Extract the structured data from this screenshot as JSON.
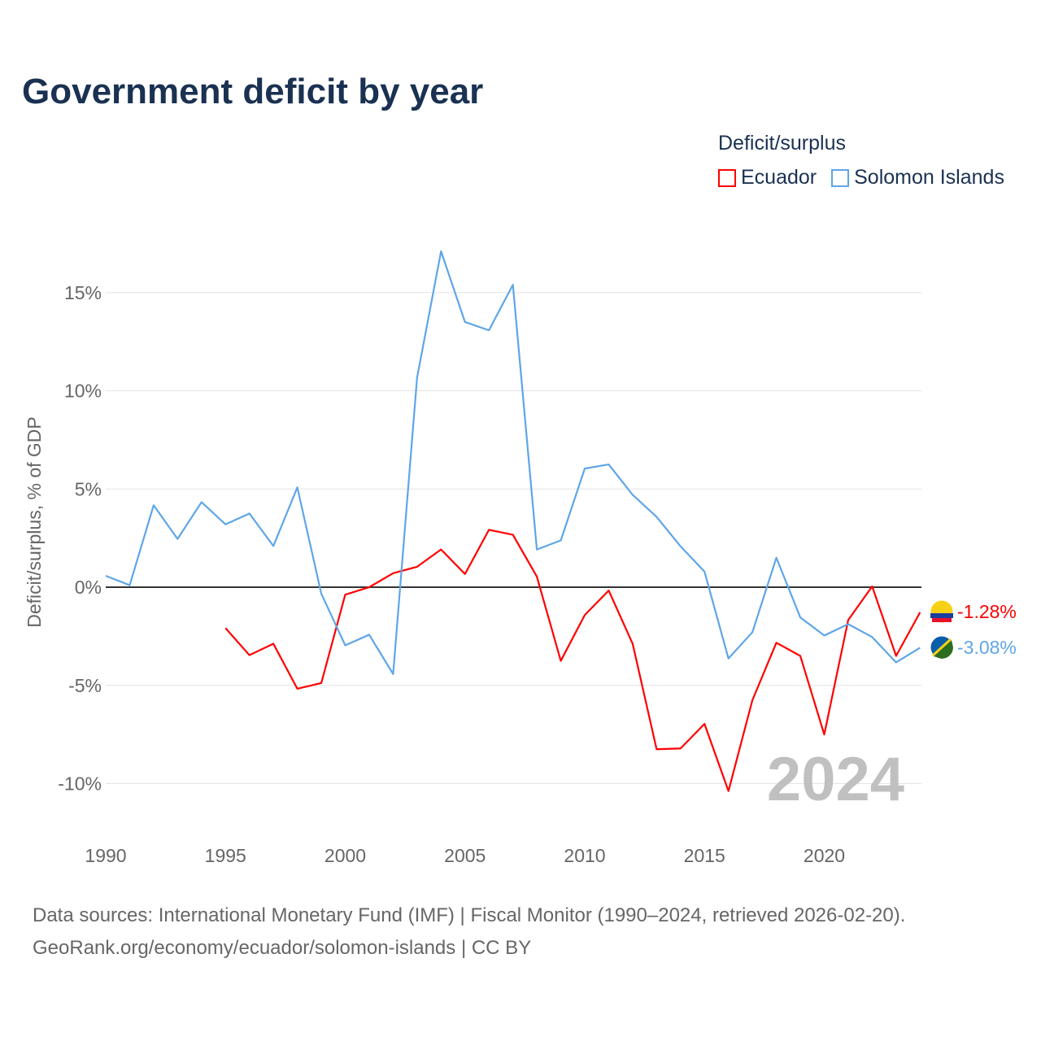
{
  "title": "Government deficit by year",
  "legend_title": "Deficit/surplus",
  "colors": {
    "Ecuador": "#ff0000",
    "Solomon Islands": "#5ea6e8"
  },
  "chart_data": {
    "type": "line",
    "title": "Government deficit by year",
    "xlabel": "",
    "ylabel": "Deficit/surplus, % of GDP",
    "xlim": [
      1990,
      2024
    ],
    "ylim": [
      -12,
      19
    ],
    "x_ticks": [
      1990,
      1995,
      2000,
      2005,
      2010,
      2015,
      2020
    ],
    "x_tick_labels": [
      "1990",
      "1995",
      "2000",
      "2005",
      "2010",
      "2015",
      "2020"
    ],
    "y_ticks": [
      -10,
      -5,
      0,
      5,
      10,
      15
    ],
    "y_tick_labels": [
      "-10%",
      "-5%",
      "0%",
      "5%",
      "10%",
      "15%"
    ],
    "grid": true,
    "legend_position": "top-right",
    "watermark_year": "2024",
    "series": [
      {
        "name": "Ecuador",
        "color": "#ff0000",
        "end_label": "-1.28%",
        "x": [
          1995,
          1996,
          1997,
          1998,
          1999,
          2000,
          2001,
          2002,
          2003,
          2004,
          2005,
          2006,
          2007,
          2008,
          2009,
          2010,
          2011,
          2012,
          2013,
          2014,
          2015,
          2016,
          2017,
          2018,
          2019,
          2020,
          2021,
          2022,
          2023,
          2024
        ],
        "values": [
          -2.08,
          -3.46,
          -2.88,
          -5.17,
          -4.88,
          -0.38,
          0.0,
          0.71,
          1.04,
          1.92,
          0.67,
          2.92,
          2.67,
          0.54,
          -3.75,
          -1.42,
          -0.17,
          -2.88,
          -8.25,
          -8.21,
          -6.96,
          -10.38,
          -5.75,
          -2.83,
          -3.5,
          -7.5,
          -1.67,
          0.04,
          -3.5,
          -1.28
        ]
      },
      {
        "name": "Solomon Islands",
        "color": "#5ea6e8",
        "end_label": "-3.08%",
        "x": [
          1990,
          1991,
          1992,
          1993,
          1994,
          1995,
          1996,
          1997,
          1998,
          1999,
          2000,
          2001,
          2002,
          2003,
          2004,
          2005,
          2006,
          2007,
          2008,
          2009,
          2010,
          2011,
          2012,
          2013,
          2014,
          2015,
          2016,
          2017,
          2018,
          2019,
          2020,
          2021,
          2022,
          2023,
          2024
        ],
        "values": [
          0.58,
          0.1,
          4.17,
          2.46,
          4.33,
          3.2,
          3.75,
          2.1,
          5.08,
          -0.33,
          -2.96,
          -2.42,
          -4.42,
          10.67,
          17.1,
          13.5,
          13.08,
          15.4,
          1.92,
          2.38,
          6.04,
          6.25,
          4.7,
          3.58,
          2.08,
          0.79,
          -3.63,
          -2.29,
          1.5,
          -1.54,
          -2.46,
          -1.88,
          -2.54,
          -3.83,
          -3.08
        ]
      }
    ]
  },
  "source_line1": "Data sources: International Monetary Fund (IMF) | Fiscal Monitor (1990–2024, retrieved 2026-02-20).",
  "source_line2": "GeoRank.org/economy/ecuador/solomon-islands | CC BY"
}
